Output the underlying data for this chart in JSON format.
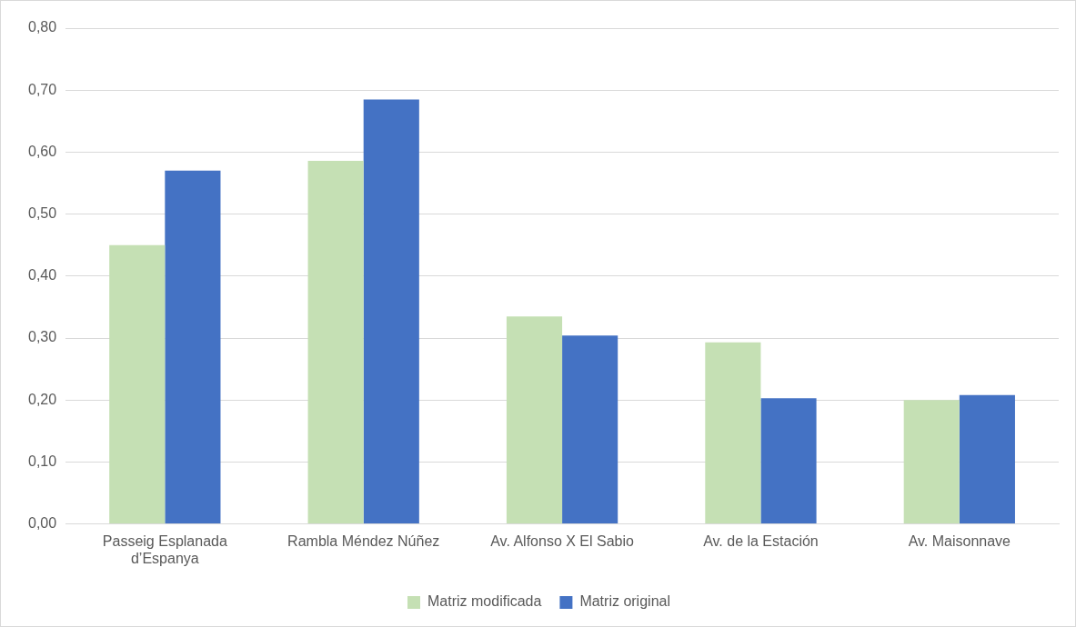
{
  "chart_data": {
    "type": "bar",
    "categories": [
      "Passeig Esplanada d’Espanya",
      "Rambla Méndez Núñez",
      "Av. Alfonso X El Sabio",
      "Av. de la Estación",
      "Av. Maisonnave"
    ],
    "series": [
      {
        "name": "Matriz modificada",
        "color": "#c5e0b4",
        "values": [
          0.45,
          0.586,
          0.335,
          0.293,
          0.2
        ]
      },
      {
        "name": "Matriz original",
        "color": "#4472c4",
        "values": [
          0.57,
          0.685,
          0.304,
          0.203,
          0.208
        ]
      }
    ],
    "ylim": [
      0,
      0.8
    ],
    "yticks": [
      {
        "value": 0,
        "label": "0,00"
      },
      {
        "value": 0.1,
        "label": "0,10"
      },
      {
        "value": 0.2,
        "label": "0,20"
      },
      {
        "value": 0.3,
        "label": "0,30"
      },
      {
        "value": 0.4,
        "label": "0,40"
      },
      {
        "value": 0.5,
        "label": "0,50"
      },
      {
        "value": 0.6,
        "label": "0,60"
      },
      {
        "value": 0.7,
        "label": "0,70"
      },
      {
        "value": 0.8,
        "label": "0,80"
      }
    ],
    "grid": "y",
    "legend": "bottom"
  }
}
